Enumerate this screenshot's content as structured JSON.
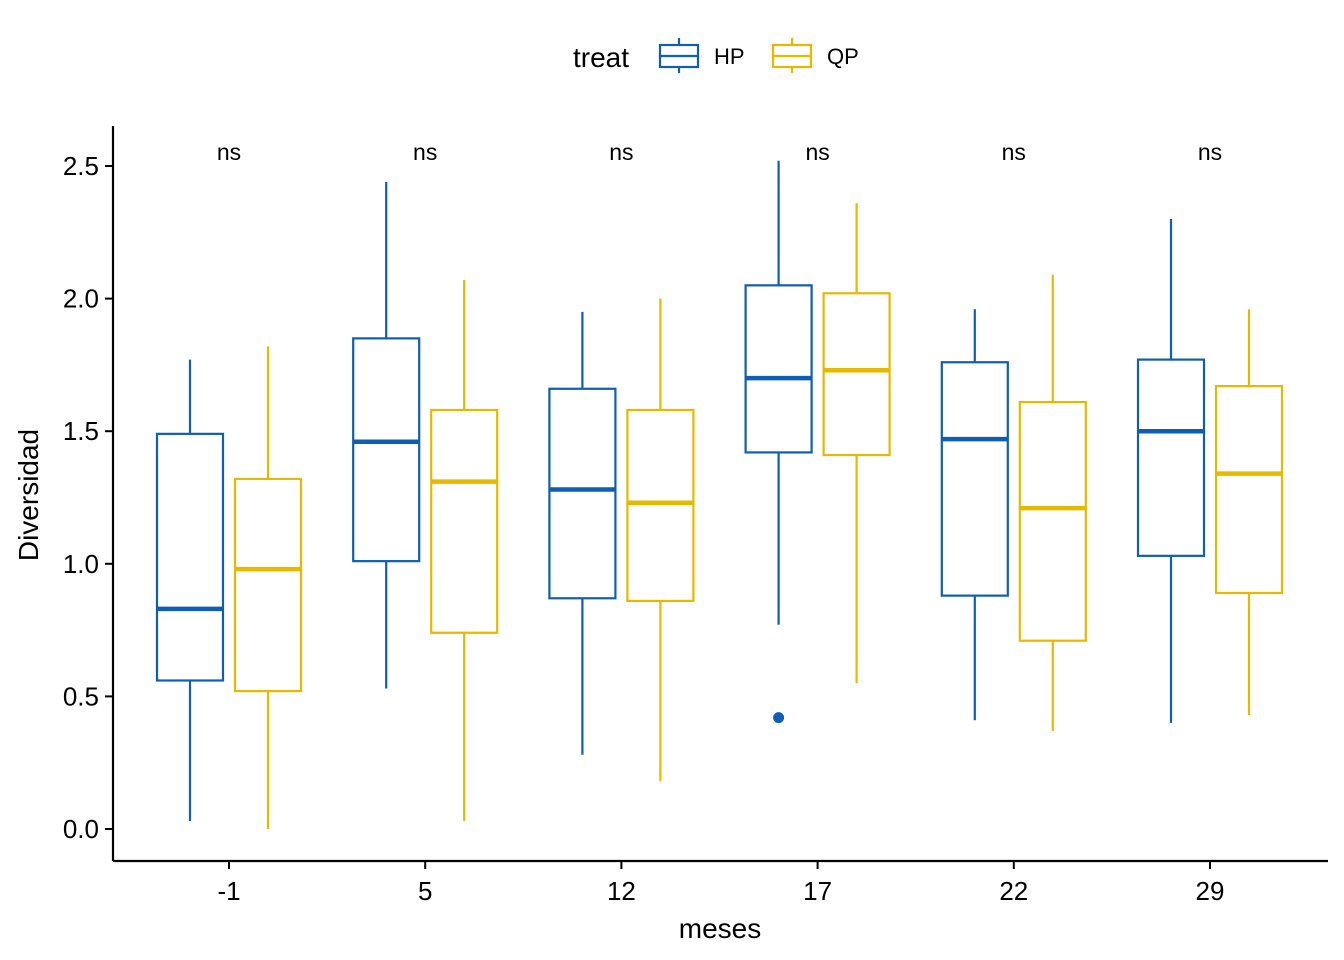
{
  "chart_data": {
    "type": "boxplot",
    "xlabel": "meses",
    "ylabel": "Diversidad",
    "ylim": [
      -0.12,
      2.65
    ],
    "yticks": [
      "0.0",
      "0.5",
      "1.0",
      "1.5",
      "2.0",
      "2.5"
    ],
    "categories": [
      "-1",
      "5",
      "12",
      "17",
      "22",
      "29"
    ],
    "legend": {
      "title": "treat",
      "position": "top",
      "entries": [
        "HP",
        "QP"
      ]
    },
    "significance_labels": [
      "ns",
      "ns",
      "ns",
      "ns",
      "ns",
      "ns"
    ],
    "series": [
      {
        "name": "HP",
        "color": "#0F5EB3",
        "boxes": [
          {
            "min": 0.03,
            "q1": 0.56,
            "median": 0.83,
            "q3": 1.49,
            "max": 1.77,
            "outliers": []
          },
          {
            "min": 0.53,
            "q1": 1.01,
            "median": 1.46,
            "q3": 1.85,
            "max": 2.44,
            "outliers": []
          },
          {
            "min": 0.28,
            "q1": 0.87,
            "median": 1.28,
            "q3": 1.66,
            "max": 1.95,
            "outliers": []
          },
          {
            "min": 0.77,
            "q1": 1.42,
            "median": 1.7,
            "q3": 2.05,
            "max": 2.52,
            "outliers": [
              0.42
            ]
          },
          {
            "min": 0.41,
            "q1": 0.88,
            "median": 1.47,
            "q3": 1.76,
            "max": 1.96,
            "outliers": []
          },
          {
            "min": 0.4,
            "q1": 1.03,
            "median": 1.5,
            "q3": 1.77,
            "max": 2.3,
            "outliers": []
          }
        ]
      },
      {
        "name": "QP",
        "color": "#E7B800",
        "boxes": [
          {
            "min": 0.0,
            "q1": 0.52,
            "median": 0.98,
            "q3": 1.32,
            "max": 1.82,
            "outliers": []
          },
          {
            "min": 0.03,
            "q1": 0.74,
            "median": 1.31,
            "q3": 1.58,
            "max": 2.07,
            "outliers": []
          },
          {
            "min": 0.18,
            "q1": 0.86,
            "median": 1.23,
            "q3": 1.58,
            "max": 2.0,
            "outliers": []
          },
          {
            "min": 0.55,
            "q1": 1.41,
            "median": 1.73,
            "q3": 2.02,
            "max": 2.36,
            "outliers": []
          },
          {
            "min": 0.37,
            "q1": 0.71,
            "median": 1.21,
            "q3": 1.61,
            "max": 2.09,
            "outliers": []
          },
          {
            "min": 0.43,
            "q1": 0.89,
            "median": 1.34,
            "q3": 1.67,
            "max": 1.96,
            "outliers": []
          }
        ]
      }
    ]
  }
}
